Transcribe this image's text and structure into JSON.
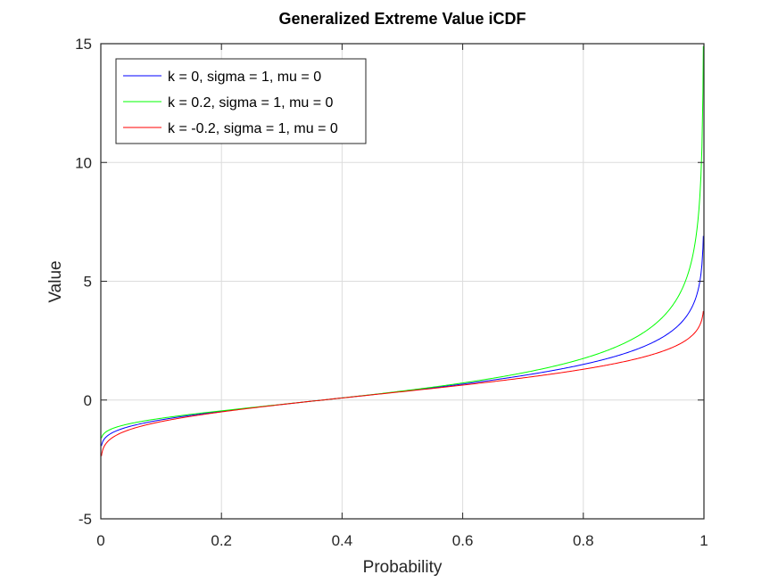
{
  "chart_data": {
    "type": "line",
    "title": "Generalized Extreme Value iCDF",
    "xlabel": "Probability",
    "ylabel": "Value",
    "xlim": [
      0,
      1
    ],
    "ylim": [
      -5,
      15
    ],
    "xticks": [
      0,
      0.2,
      0.4,
      0.6,
      0.8,
      1
    ],
    "xtick_labels": [
      "0",
      "0.2",
      "0.4",
      "0.6",
      "0.8",
      "1"
    ],
    "yticks": [
      -5,
      0,
      5,
      10,
      15
    ],
    "ytick_labels": [
      "-5",
      "0",
      "5",
      "10",
      "15"
    ],
    "grid": true,
    "legend_position": "top-left",
    "x": [
      0.001,
      0.01,
      0.05,
      0.1,
      0.2,
      0.3,
      0.4,
      0.5,
      0.6,
      0.7,
      0.8,
      0.9,
      0.95,
      0.99,
      0.999
    ],
    "series": [
      {
        "name": "k = 0, sigma = 1, mu = 0",
        "color": "#0000ff",
        "k": 0,
        "values": [
          -1.933,
          -1.527,
          -1.097,
          -0.834,
          -0.476,
          -0.186,
          0.087,
          0.367,
          0.672,
          1.031,
          1.5,
          2.25,
          2.97,
          4.6,
          6.907
        ]
      },
      {
        "name": "k = 0.2, sigma = 1, mu = 0",
        "color": "#00ff00",
        "k": 0.2,
        "values": [
          -1.603,
          -1.316,
          -0.985,
          -0.768,
          -0.454,
          -0.182,
          0.088,
          0.38,
          0.719,
          1.145,
          1.749,
          2.842,
          4.057,
          7.546,
          14.903
        ]
      },
      {
        "name": "k = -0.2, sigma = 1, mu = 0",
        "color": "#ff0000",
        "k": -0.2,
        "values": [
          -2.359,
          -1.786,
          -1.227,
          -0.908,
          -0.5,
          -0.189,
          0.087,
          0.354,
          0.628,
          0.932,
          1.296,
          1.812,
          2.24,
          3.008,
          3.744
        ]
      }
    ]
  }
}
